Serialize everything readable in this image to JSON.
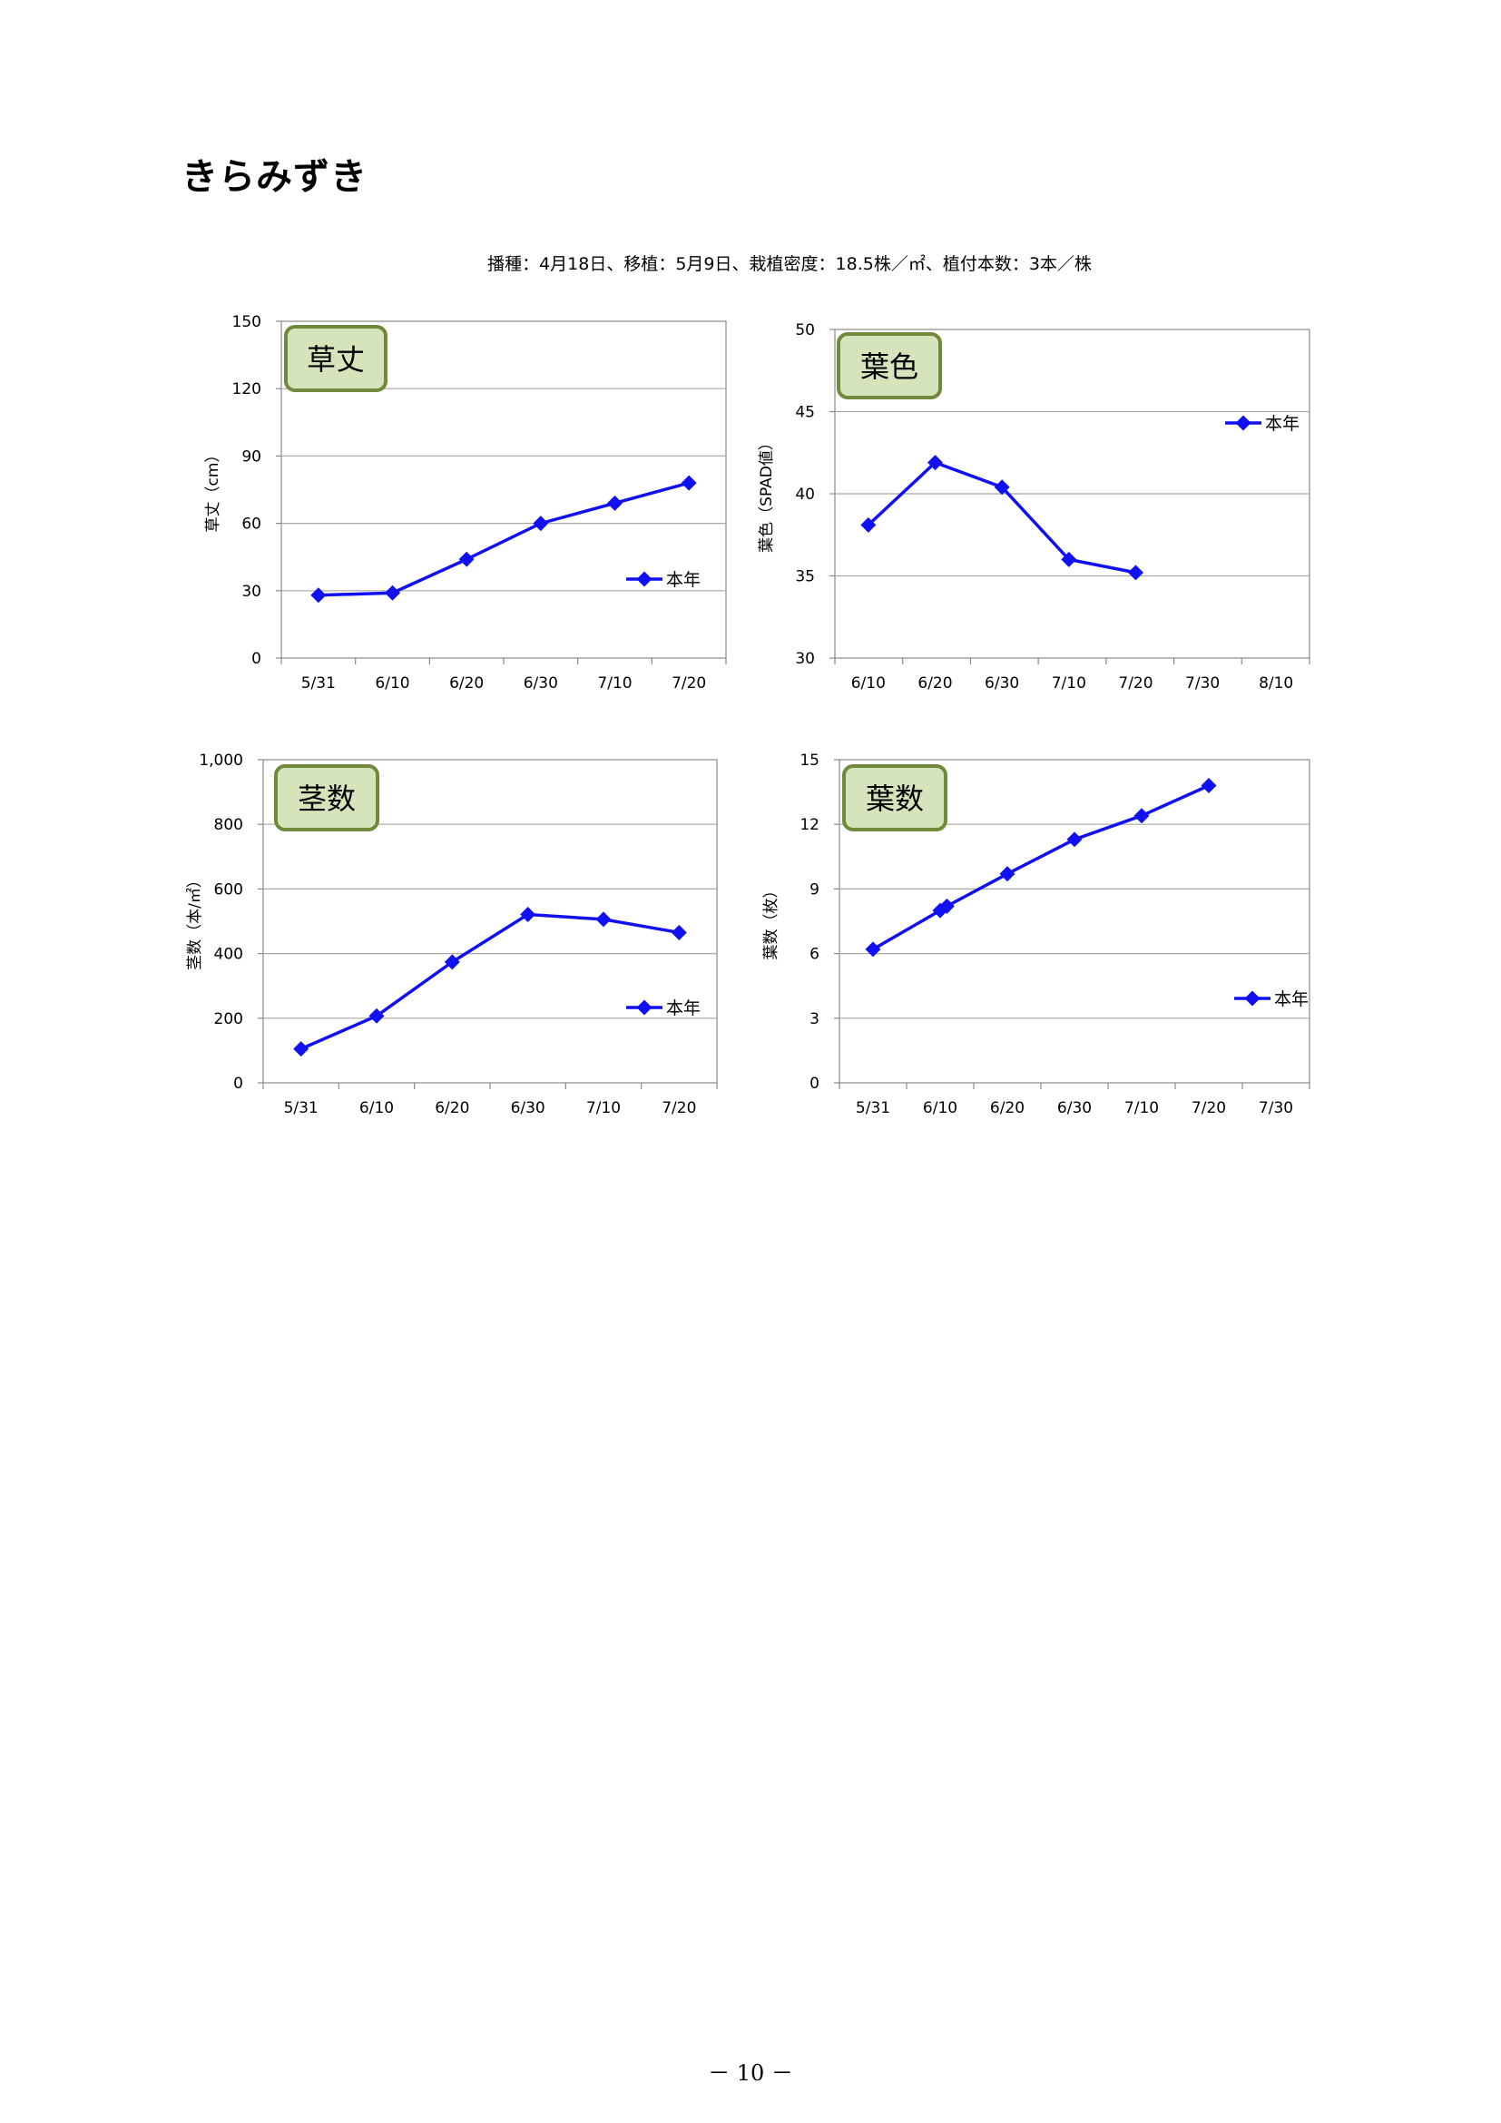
{
  "page": {
    "title": "きらみずき",
    "subtitle": "播種：4月18日、移植：5月9日、栽植密度：18.5株／㎡、植付本数：3本／株",
    "page_number": "－ 10 －"
  },
  "colors": {
    "series": "#1010f0",
    "badge_fill": "#d6e4bc",
    "badge_border": "#71893a",
    "grid": "#a8a8a8"
  },
  "chart_data": [
    {
      "type": "line",
      "title": "草丈",
      "ylabel": "草丈（cm）",
      "ylim": [
        0,
        150
      ],
      "yticks": [
        0,
        30,
        60,
        90,
        120,
        150
      ],
      "ytick_labels": [
        "0",
        "30",
        "60",
        "90",
        "120",
        "150"
      ],
      "xlim": [
        "5/26",
        "7/25"
      ],
      "xtick_labels": [
        "5/31",
        "6/10",
        "6/20",
        "6/30",
        "7/10",
        "7/20"
      ],
      "legend": "right-middle",
      "grid": true,
      "series": [
        {
          "name": "本年",
          "x": [
            "5/31",
            "6/10",
            "6/20",
            "6/30",
            "7/10",
            "7/20"
          ],
          "y": [
            28,
            29,
            44,
            60,
            69,
            78
          ]
        }
      ]
    },
    {
      "type": "line",
      "title": "葉色",
      "ylabel": "葉色（SPAD値）",
      "ylim": [
        30,
        50
      ],
      "yticks": [
        30,
        35,
        40,
        45,
        50
      ],
      "ytick_labels": [
        "30",
        "35",
        "40",
        "45",
        "50"
      ],
      "xlim": [
        "6/5",
        "8/15"
      ],
      "xtick_labels": [
        "6/10",
        "6/20",
        "6/30",
        "7/10",
        "7/20",
        "7/30",
        "8/10"
      ],
      "legend": "top-right",
      "grid": true,
      "series": [
        {
          "name": "本年",
          "x": [
            "6/10",
            "6/20",
            "6/30",
            "7/10",
            "7/20"
          ],
          "y": [
            38.1,
            41.9,
            40.4,
            36.0,
            35.2
          ]
        }
      ]
    },
    {
      "type": "line",
      "title": "茎数",
      "ylabel": "茎数（本/㎡）",
      "ylim": [
        0,
        1000
      ],
      "yticks": [
        0,
        200,
        400,
        600,
        800,
        1000
      ],
      "ytick_labels": [
        "0",
        "200",
        "400",
        "600",
        "800",
        "1,000"
      ],
      "xlim": [
        "5/26",
        "7/25"
      ],
      "xtick_labels": [
        "5/31",
        "6/10",
        "6/20",
        "6/30",
        "7/10",
        "7/20"
      ],
      "legend": "right-middle",
      "grid": true,
      "series": [
        {
          "name": "本年",
          "x": [
            "5/31",
            "6/10",
            "6/20",
            "6/30",
            "7/10",
            "7/20"
          ],
          "y": [
            105,
            207,
            374,
            521,
            506,
            465
          ]
        }
      ]
    },
    {
      "type": "line",
      "title": "葉数",
      "ylabel": "葉数（枚）",
      "ylim": [
        0,
        15
      ],
      "yticks": [
        0,
        3,
        6,
        9,
        12,
        15
      ],
      "ytick_labels": [
        "0",
        "3",
        "6",
        "9",
        "12",
        "15"
      ],
      "xlim": [
        "5/26",
        "8/4"
      ],
      "xtick_labels": [
        "5/31",
        "6/10",
        "6/20",
        "6/30",
        "7/10",
        "7/20",
        "7/30"
      ],
      "legend": "right-middle",
      "grid": true,
      "series": [
        {
          "name": "本年",
          "x": [
            "5/31",
            "6/10",
            "6/11",
            "6/20",
            "6/30",
            "7/10",
            "7/20"
          ],
          "y": [
            6.2,
            8.0,
            8.2,
            9.7,
            11.3,
            12.4,
            13.8
          ]
        }
      ]
    }
  ]
}
